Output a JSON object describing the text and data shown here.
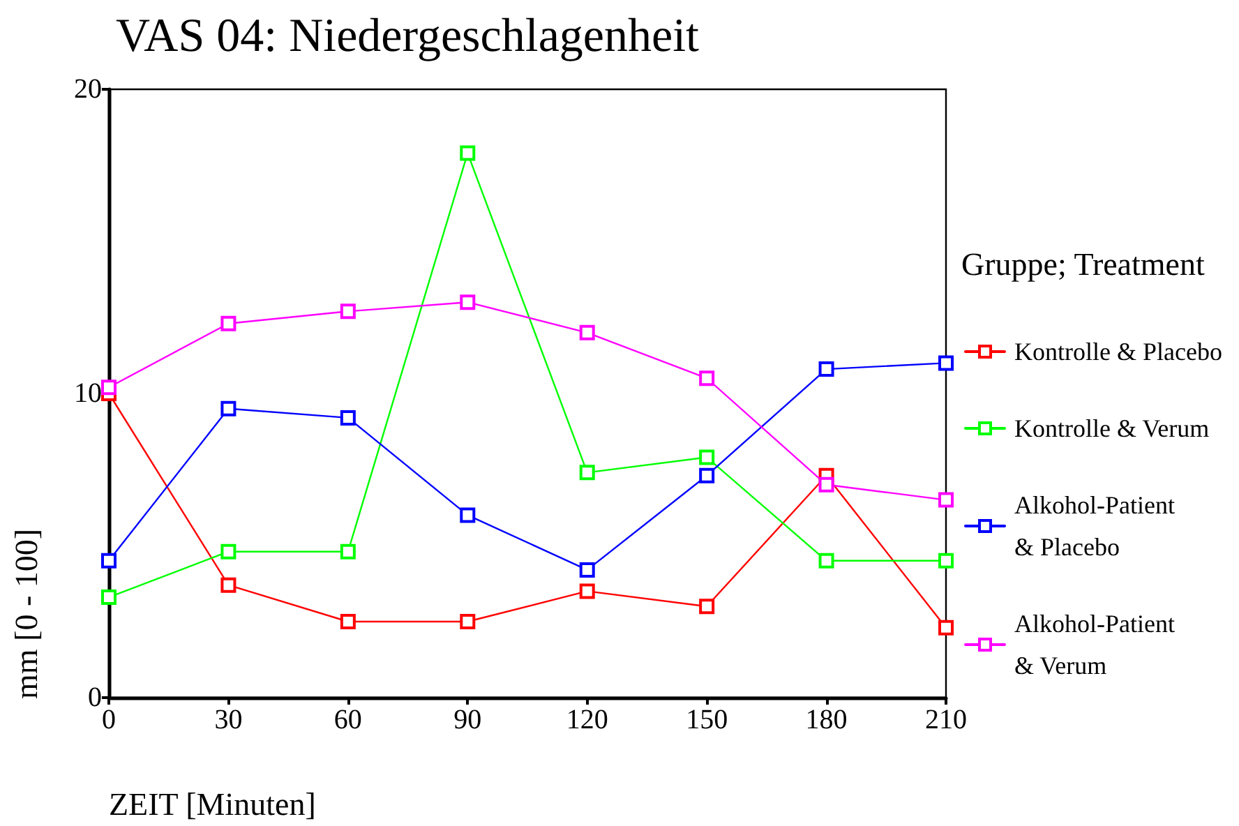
{
  "chart_data": {
    "type": "line",
    "title": "VAS 04: Niedergeschlagenheit",
    "xlabel": "ZEIT [Minuten]",
    "ylabel": "mm [0 - 100]",
    "legend_title": "Gruppe; Treatment",
    "x": [
      0,
      30,
      60,
      90,
      120,
      150,
      180,
      210
    ],
    "xlim": [
      0,
      210
    ],
    "xticks": [
      0,
      30,
      60,
      90,
      120,
      150,
      180,
      210
    ],
    "ylim": [
      0,
      20
    ],
    "yticks": [
      0,
      10,
      20
    ],
    "grid": false,
    "legend": "right",
    "marker": "square",
    "line_style": "solid",
    "series": [
      {
        "name": "Kontrolle & Placebo",
        "color": "#ff0000",
        "values": [
          10.0,
          3.7,
          2.5,
          2.5,
          3.5,
          3.0,
          7.3,
          2.3
        ]
      },
      {
        "name": "Kontrolle & Verum",
        "color": "#00ff00",
        "values": [
          3.3,
          4.8,
          4.8,
          17.9,
          7.4,
          7.9,
          4.5,
          4.5
        ]
      },
      {
        "name": "Alkohol-Patient & Placebo",
        "color": "#0000ff",
        "values": [
          4.5,
          9.5,
          9.2,
          6.0,
          4.2,
          7.3,
          10.8,
          11.0
        ]
      },
      {
        "name": "Alkohol-Patient & Verum",
        "color": "#ff00ff",
        "values": [
          10.2,
          12.3,
          12.7,
          13.0,
          12.0,
          10.5,
          7.0,
          6.5
        ]
      }
    ]
  }
}
